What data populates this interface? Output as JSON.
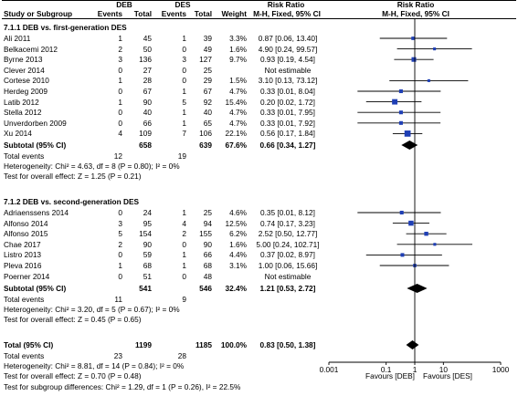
{
  "header": {
    "group1": "DEB",
    "group2": "DES",
    "study_col": "Study or Subgroup",
    "events1": "Events",
    "total1": "Total",
    "events2": "Events",
    "total2": "Total",
    "weight": "Weight",
    "rr_title": "Risk Ratio",
    "rr_method": "M-H, Fixed, 95% CI",
    "plot_title": "Risk Ratio",
    "plot_method": "M-H, Fixed, 95% CI"
  },
  "subgroup1": {
    "title": "7.1.1 DEB vs. first-generation DES",
    "subtotal": {
      "label": "Subtotal (95% CI)",
      "total1": "658",
      "total2": "639",
      "weight": "67.6%",
      "ci": "0.66 [0.34, 1.27]"
    },
    "events_label": "Total events",
    "events1": "12",
    "events2": "19",
    "heterogeneity": "Heterogeneity: Chi² = 4.63, df = 8 (P = 0.80); I² = 0%",
    "overall": "Test for overall effect: Z = 1.25 (P = 0.21)"
  },
  "subgroup2": {
    "title": "7.1.2 DEB vs. second-generation DES",
    "subtotal": {
      "label": "Subtotal (95% CI)",
      "total1": "541",
      "total2": "546",
      "weight": "32.4%",
      "ci": "1.21 [0.53, 2.72]"
    },
    "events_label": "Total events",
    "events1": "11",
    "events2": "9",
    "heterogeneity": "Heterogeneity: Chi² = 3.20, df = 5 (P = 0.67); I² = 0%",
    "overall": "Test for overall effect: Z = 0.45 (P = 0.65)"
  },
  "total": {
    "label": "Total (95% CI)",
    "total1": "1199",
    "total2": "1185",
    "weight": "100.0%",
    "ci": "0.83 [0.50, 1.38]",
    "events_label": "Total events",
    "events1": "23",
    "events2": "28",
    "heterogeneity": "Heterogeneity: Chi² = 8.81, df = 14 (P = 0.84); I² = 0%",
    "overall": "Test for overall effect: Z = 0.70 (P = 0.48)",
    "subgroup_diff": "Test for subgroup differences: Chi² = 1.29, df = 1 (P = 0.26), I² = 22.5%"
  },
  "axis": {
    "ticks": [
      "0.001",
      "0.1",
      "1",
      "10",
      "1000"
    ],
    "favours_left": "Favours [DEB]",
    "favours_right": "Favours [DES]"
  },
  "chart_data": {
    "type": "forest",
    "scale": "log",
    "xlim": [
      0.001,
      1000
    ],
    "xticks": [
      0.001,
      0.1,
      1,
      10,
      1000
    ],
    "studies": [
      {
        "group": 1,
        "name": "Ali 2011",
        "e1": 1,
        "t1": 45,
        "e2": 1,
        "t2": 39,
        "weight": "3.3%",
        "rr": 0.87,
        "lo": 0.06,
        "hi": 13.4,
        "ci": "0.87 [0.06, 13.40]"
      },
      {
        "group": 1,
        "name": "Belkacemi 2012",
        "e1": 2,
        "t1": 50,
        "e2": 0,
        "t2": 49,
        "weight": "1.6%",
        "rr": 4.9,
        "lo": 0.24,
        "hi": 99.57,
        "ci": "4.90 [0.24, 99.57]"
      },
      {
        "group": 1,
        "name": "Byrne 2013",
        "e1": 3,
        "t1": 136,
        "e2": 3,
        "t2": 127,
        "weight": "9.7%",
        "rr": 0.93,
        "lo": 0.19,
        "hi": 4.54,
        "ci": "0.93 [0.19, 4.54]"
      },
      {
        "group": 1,
        "name": "Clever 2014",
        "e1": 0,
        "t1": 27,
        "e2": 0,
        "t2": 25,
        "weight": "",
        "rr": null,
        "lo": null,
        "hi": null,
        "ci": "Not estimable"
      },
      {
        "group": 1,
        "name": "Cortese 2010",
        "e1": 1,
        "t1": 28,
        "e2": 0,
        "t2": 29,
        "weight": "1.5%",
        "rr": 3.1,
        "lo": 0.13,
        "hi": 73.12,
        "ci": "3.10 [0.13, 73.12]"
      },
      {
        "group": 1,
        "name": "Herdeg 2009",
        "e1": 0,
        "t1": 67,
        "e2": 1,
        "t2": 67,
        "weight": "4.7%",
        "rr": 0.33,
        "lo": 0.01,
        "hi": 8.04,
        "ci": "0.33 [0.01, 8.04]"
      },
      {
        "group": 1,
        "name": "Latib 2012",
        "e1": 1,
        "t1": 90,
        "e2": 5,
        "t2": 92,
        "weight": "15.4%",
        "rr": 0.2,
        "lo": 0.02,
        "hi": 1.72,
        "ci": "0.20 [0.02, 1.72]"
      },
      {
        "group": 1,
        "name": "Stella 2012",
        "e1": 0,
        "t1": 40,
        "e2": 1,
        "t2": 40,
        "weight": "4.7%",
        "rr": 0.33,
        "lo": 0.01,
        "hi": 7.95,
        "ci": "0.33 [0.01, 7.95]"
      },
      {
        "group": 1,
        "name": "Unverdorben 2009",
        "e1": 0,
        "t1": 66,
        "e2": 1,
        "t2": 65,
        "weight": "4.7%",
        "rr": 0.33,
        "lo": 0.01,
        "hi": 7.92,
        "ci": "0.33 [0.01, 7.92]"
      },
      {
        "group": 1,
        "name": "Xu 2014",
        "e1": 4,
        "t1": 109,
        "e2": 7,
        "t2": 106,
        "weight": "22.1%",
        "rr": 0.56,
        "lo": 0.17,
        "hi": 1.84,
        "ci": "0.56 [0.17, 1.84]"
      },
      {
        "group": 2,
        "name": "Adriaenssens 2014",
        "e1": 0,
        "t1": 24,
        "e2": 1,
        "t2": 25,
        "weight": "4.6%",
        "rr": 0.35,
        "lo": 0.01,
        "hi": 8.12,
        "ci": "0.35 [0.01, 8.12]"
      },
      {
        "group": 2,
        "name": "Alfonso 2014",
        "e1": 3,
        "t1": 95,
        "e2": 4,
        "t2": 94,
        "weight": "12.5%",
        "rr": 0.74,
        "lo": 0.17,
        "hi": 3.23,
        "ci": "0.74 [0.17, 3.23]"
      },
      {
        "group": 2,
        "name": "Alfonso 2015",
        "e1": 5,
        "t1": 154,
        "e2": 2,
        "t2": 155,
        "weight": "6.2%",
        "rr": 2.52,
        "lo": 0.5,
        "hi": 12.77,
        "ci": "2.52 [0.50, 12.77]"
      },
      {
        "group": 2,
        "name": "Chae 2017",
        "e1": 2,
        "t1": 90,
        "e2": 0,
        "t2": 90,
        "weight": "1.6%",
        "rr": 5.0,
        "lo": 0.24,
        "hi": 102.71,
        "ci": "5.00 [0.24, 102.71]"
      },
      {
        "group": 2,
        "name": "Listro 2013",
        "e1": 0,
        "t1": 59,
        "e2": 1,
        "t2": 66,
        "weight": "4.4%",
        "rr": 0.37,
        "lo": 0.02,
        "hi": 8.97,
        "ci": "0.37 [0.02, 8.97]"
      },
      {
        "group": 2,
        "name": "Pleva 2016",
        "e1": 1,
        "t1": 68,
        "e2": 1,
        "t2": 68,
        "weight": "3.1%",
        "rr": 1.0,
        "lo": 0.06,
        "hi": 15.66,
        "ci": "1.00 [0.06, 15.66]"
      },
      {
        "group": 2,
        "name": "Poerner 2014",
        "e1": 0,
        "t1": 51,
        "e2": 0,
        "t2": 48,
        "weight": "",
        "rr": null,
        "lo": null,
        "hi": null,
        "ci": "Not estimable"
      }
    ],
    "diamonds": [
      {
        "name": "Subtotal 7.1.1",
        "rr": 0.66,
        "lo": 0.34,
        "hi": 1.27
      },
      {
        "name": "Subtotal 7.1.2",
        "rr": 1.21,
        "lo": 0.53,
        "hi": 2.72
      },
      {
        "name": "Total",
        "rr": 0.83,
        "lo": 0.5,
        "hi": 1.38
      }
    ]
  }
}
